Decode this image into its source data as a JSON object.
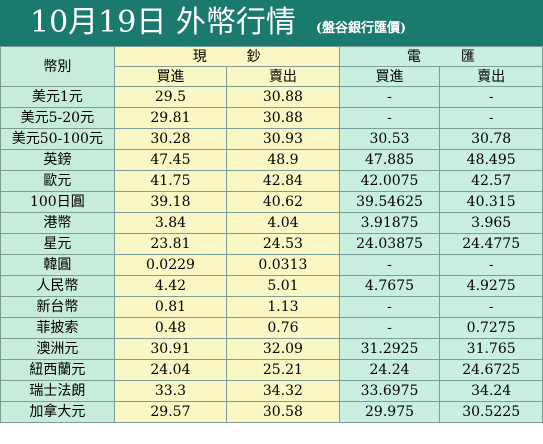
{
  "header": {
    "title": "10月19日 外幣行情",
    "subtitle": "(盤谷銀行匯價)"
  },
  "table": {
    "currency_header": "幣別",
    "cash_header": "現鈔",
    "wire_header": "電匯",
    "buy_label": "買進",
    "sell_label": "賣出",
    "rows": [
      {
        "currency": "美元1元",
        "cash_buy": "29.5",
        "cash_sell": "30.88",
        "wire_buy": "-",
        "wire_sell": "-"
      },
      {
        "currency": "美元5-20元",
        "cash_buy": "29.81",
        "cash_sell": "30.88",
        "wire_buy": "-",
        "wire_sell": "-"
      },
      {
        "currency": "美元50-100元",
        "cash_buy": "30.28",
        "cash_sell": "30.93",
        "wire_buy": "30.53",
        "wire_sell": "30.78"
      },
      {
        "currency": "英鎊",
        "cash_buy": "47.45",
        "cash_sell": "48.9",
        "wire_buy": "47.885",
        "wire_sell": "48.495"
      },
      {
        "currency": "歐元",
        "cash_buy": "41.75",
        "cash_sell": "42.84",
        "wire_buy": "42.0075",
        "wire_sell": "42.57"
      },
      {
        "currency": "100日圓",
        "cash_buy": "39.18",
        "cash_sell": "40.62",
        "wire_buy": "39.54625",
        "wire_sell": "40.315"
      },
      {
        "currency": "港幣",
        "cash_buy": "3.84",
        "cash_sell": "4.04",
        "wire_buy": "3.91875",
        "wire_sell": "3.965"
      },
      {
        "currency": "星元",
        "cash_buy": "23.81",
        "cash_sell": "24.53",
        "wire_buy": "24.03875",
        "wire_sell": "24.4775"
      },
      {
        "currency": "韓圓",
        "cash_buy": "0.0229",
        "cash_sell": "0.0313",
        "wire_buy": "-",
        "wire_sell": "-"
      },
      {
        "currency": "人民幣",
        "cash_buy": "4.42",
        "cash_sell": "5.01",
        "wire_buy": "4.7675",
        "wire_sell": "4.9275"
      },
      {
        "currency": "新台幣",
        "cash_buy": "0.81",
        "cash_sell": "1.13",
        "wire_buy": "-",
        "wire_sell": "-"
      },
      {
        "currency": "菲披索",
        "cash_buy": "0.48",
        "cash_sell": "0.76",
        "wire_buy": "-",
        "wire_sell": "0.7275"
      },
      {
        "currency": "澳洲元",
        "cash_buy": "30.91",
        "cash_sell": "32.09",
        "wire_buy": "31.2925",
        "wire_sell": "31.765"
      },
      {
        "currency": "紐西蘭元",
        "cash_buy": "24.04",
        "cash_sell": "25.21",
        "wire_buy": "24.24",
        "wire_sell": "24.6725"
      },
      {
        "currency": "瑞士法朗",
        "cash_buy": "33.3",
        "cash_sell": "34.32",
        "wire_buy": "33.6975",
        "wire_sell": "34.24"
      },
      {
        "currency": "加拿大元",
        "cash_buy": "29.57",
        "cash_sell": "30.58",
        "wire_buy": "29.975",
        "wire_sell": "30.5225"
      }
    ]
  }
}
